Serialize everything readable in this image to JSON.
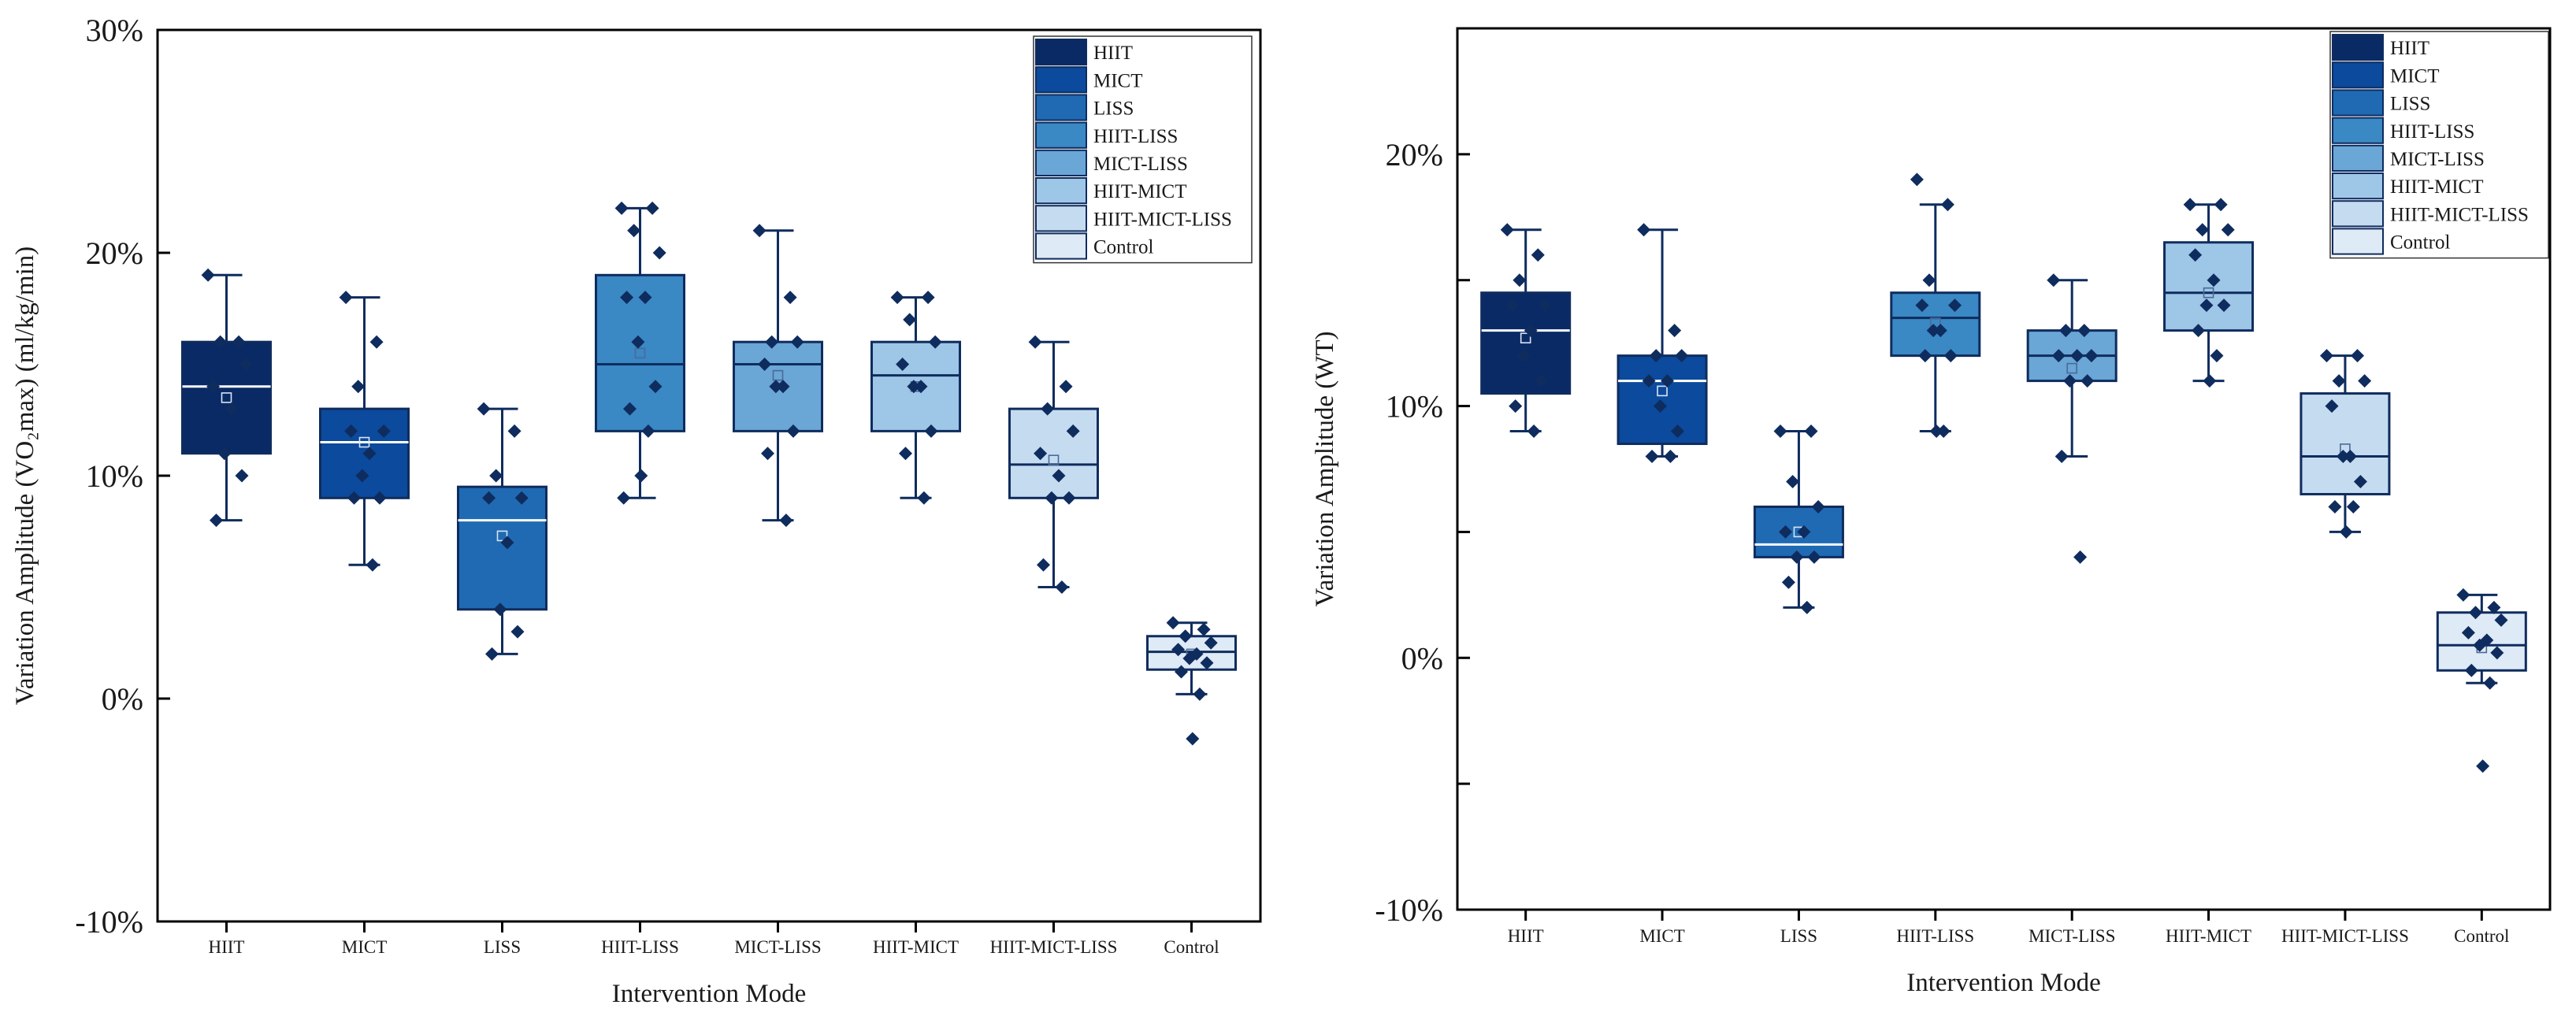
{
  "chart_data": [
    {
      "type": "box",
      "title": "",
      "xlabel": "Intervention Mode",
      "ylabel": "Variation Amplitude (VO₂max) (ml/kg/min)",
      "ylim": [
        -0.1,
        0.3
      ],
      "yticks": [
        -0.1,
        0.0,
        0.1,
        0.2,
        0.3
      ],
      "ytick_labels": [
        "-10%",
        "0%",
        "10%",
        "20%",
        "30%"
      ],
      "grid": false,
      "legend_position": "top-right",
      "colors": [
        "#0a2a66",
        "#0b4a9c",
        "#1f6ab3",
        "#3a88c4",
        "#6aa6d6",
        "#9ec6e6",
        "#c5dbf0",
        "#deeaf6"
      ],
      "categories": [
        "HIIT",
        "MICT",
        "LISS",
        "HIIT-LISS",
        "MICT-LISS",
        "HIIT-MICT",
        "HIIT-MICT-LISS",
        "Control"
      ],
      "boxes": [
        {
          "whislo": 0.08,
          "q1": 0.11,
          "med": 0.14,
          "q3": 0.16,
          "whishi": 0.19,
          "mean": 0.135,
          "points": [
            0.19,
            0.16,
            0.16,
            0.15,
            0.14,
            0.13,
            0.11,
            0.1,
            0.08
          ]
        },
        {
          "whislo": 0.06,
          "q1": 0.09,
          "med": 0.115,
          "q3": 0.13,
          "whishi": 0.18,
          "mean": 0.115,
          "points": [
            0.18,
            0.16,
            0.14,
            0.12,
            0.12,
            0.11,
            0.1,
            0.09,
            0.09,
            0.06
          ]
        },
        {
          "whislo": 0.02,
          "q1": 0.04,
          "med": 0.08,
          "q3": 0.095,
          "whishi": 0.13,
          "mean": 0.073,
          "points": [
            0.13,
            0.12,
            0.1,
            0.09,
            0.09,
            0.07,
            0.04,
            0.03,
            0.02
          ]
        },
        {
          "whislo": 0.09,
          "q1": 0.12,
          "med": 0.15,
          "q3": 0.19,
          "whishi": 0.22,
          "mean": 0.155,
          "points": [
            0.22,
            0.22,
            0.21,
            0.2,
            0.18,
            0.18,
            0.16,
            0.14,
            0.13,
            0.12,
            0.1,
            0.09
          ]
        },
        {
          "whislo": 0.08,
          "q1": 0.12,
          "med": 0.15,
          "q3": 0.16,
          "whishi": 0.21,
          "mean": 0.145,
          "points": [
            0.21,
            0.18,
            0.16,
            0.16,
            0.15,
            0.14,
            0.14,
            0.12,
            0.11,
            0.08
          ]
        },
        {
          "whislo": 0.09,
          "q1": 0.12,
          "med": 0.145,
          "q3": 0.16,
          "whishi": 0.18,
          "mean": 0.14,
          "points": [
            0.18,
            0.18,
            0.17,
            0.16,
            0.15,
            0.14,
            0.14,
            0.12,
            0.11,
            0.09
          ]
        },
        {
          "whislo": 0.05,
          "q1": 0.09,
          "med": 0.105,
          "q3": 0.13,
          "whishi": 0.16,
          "mean": 0.107,
          "points": [
            0.16,
            0.14,
            0.13,
            0.12,
            0.11,
            0.1,
            0.09,
            0.09,
            0.06,
            0.05
          ]
        },
        {
          "whislo": 0.002,
          "q1": 0.013,
          "med": 0.021,
          "q3": 0.028,
          "whishi": 0.034,
          "mean": 0.02,
          "points": [
            0.034,
            0.031,
            0.028,
            0.025,
            0.022,
            0.02,
            0.018,
            0.016,
            0.012,
            0.002,
            -0.018
          ]
        }
      ]
    },
    {
      "type": "box",
      "title": "",
      "xlabel": "Intervention Mode",
      "ylabel": "Variation Amplitude (WT)",
      "ylim": [
        -0.1,
        0.25
      ],
      "yticks": [
        -0.1,
        -0.05,
        0.0,
        0.05,
        0.1,
        0.15,
        0.2,
        0.25
      ],
      "ytick_labels": [
        "-10%",
        "",
        "0%",
        "",
        "10%",
        "",
        "20%",
        ""
      ],
      "grid": false,
      "legend_position": "top-right",
      "colors": [
        "#0a2a66",
        "#0b4a9c",
        "#1f6ab3",
        "#3a88c4",
        "#6aa6d6",
        "#9ec6e6",
        "#c5dbf0",
        "#deeaf6"
      ],
      "categories": [
        "HIIT",
        "MICT",
        "LISS",
        "HIIT-LISS",
        "MICT-LISS",
        "HIIT-MICT",
        "HIIT-MICT-LISS",
        "Control"
      ],
      "boxes": [
        {
          "whislo": 0.09,
          "q1": 0.105,
          "med": 0.13,
          "q3": 0.145,
          "whishi": 0.17,
          "mean": 0.127,
          "points": [
            0.17,
            0.16,
            0.15,
            0.14,
            0.14,
            0.13,
            0.12,
            0.11,
            0.1,
            0.09
          ]
        },
        {
          "whislo": 0.08,
          "q1": 0.085,
          "med": 0.11,
          "q3": 0.12,
          "whishi": 0.17,
          "mean": 0.106,
          "points": [
            0.17,
            0.13,
            0.12,
            0.12,
            0.11,
            0.11,
            0.1,
            0.09,
            0.08,
            0.08
          ]
        },
        {
          "whislo": 0.02,
          "q1": 0.04,
          "med": 0.045,
          "q3": 0.06,
          "whishi": 0.09,
          "mean": 0.05,
          "points": [
            0.09,
            0.09,
            0.07,
            0.06,
            0.05,
            0.05,
            0.04,
            0.04,
            0.03,
            0.02
          ]
        },
        {
          "whislo": 0.09,
          "q1": 0.12,
          "med": 0.135,
          "q3": 0.145,
          "whishi": 0.18,
          "mean": 0.133,
          "points": [
            0.19,
            0.18,
            0.15,
            0.14,
            0.14,
            0.13,
            0.13,
            0.12,
            0.12,
            0.09,
            0.09
          ]
        },
        {
          "whislo": 0.08,
          "q1": 0.11,
          "med": 0.12,
          "q3": 0.13,
          "whishi": 0.15,
          "mean": 0.115,
          "points": [
            0.15,
            0.13,
            0.13,
            0.12,
            0.12,
            0.12,
            0.11,
            0.11,
            0.08,
            0.04
          ]
        },
        {
          "whislo": 0.11,
          "q1": 0.13,
          "med": 0.145,
          "q3": 0.165,
          "whishi": 0.18,
          "mean": 0.145,
          "points": [
            0.18,
            0.18,
            0.17,
            0.17,
            0.16,
            0.15,
            0.14,
            0.14,
            0.13,
            0.12,
            0.11
          ]
        },
        {
          "whislo": 0.05,
          "q1": 0.065,
          "med": 0.08,
          "q3": 0.105,
          "whishi": 0.12,
          "mean": 0.083,
          "points": [
            0.12,
            0.12,
            0.11,
            0.11,
            0.1,
            0.08,
            0.08,
            0.07,
            0.06,
            0.06,
            0.05
          ]
        },
        {
          "whislo": -0.01,
          "q1": -0.005,
          "med": 0.005,
          "q3": 0.018,
          "whishi": 0.025,
          "mean": 0.004,
          "points": [
            0.025,
            0.02,
            0.018,
            0.015,
            0.01,
            0.007,
            0.005,
            0.002,
            -0.005,
            -0.01,
            -0.043
          ]
        }
      ]
    }
  ]
}
